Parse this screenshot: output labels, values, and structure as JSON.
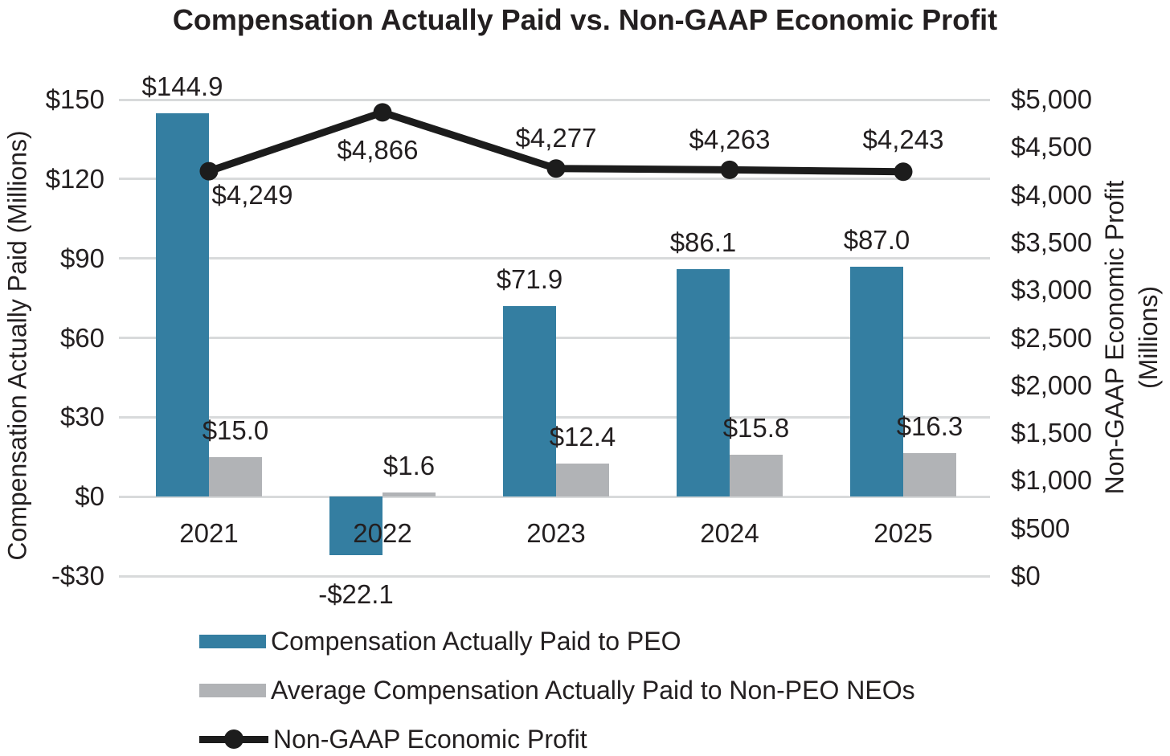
{
  "title": "Compensation Actually Paid vs. Non-GAAP Economic Profit",
  "chart_data": {
    "type": "combo-bar-line",
    "title": "Compensation Actually Paid vs. Non-GAAP Economic Profit",
    "categories": [
      "2021",
      "2022",
      "2023",
      "2024",
      "2025"
    ],
    "series": [
      {
        "name": "Compensation Actually Paid to PEO",
        "type": "bar",
        "axis": "left",
        "color": "#347EA1",
        "values": [
          144.9,
          -22.1,
          71.9,
          86.1,
          87.0
        ],
        "labels": [
          "$144.9",
          "-$22.1",
          "$71.9",
          "$86.1",
          "$87.0"
        ]
      },
      {
        "name": "Average Compensation Actually Paid to Non-PEO NEOs",
        "type": "bar",
        "axis": "left",
        "color": "#B1B3B6",
        "values": [
          15.0,
          1.6,
          12.4,
          15.8,
          16.3
        ],
        "labels": [
          "$15.0",
          "$1.6",
          "$12.4",
          "$15.8",
          "$16.3"
        ]
      },
      {
        "name": "Non-GAAP Economic Profit",
        "type": "line",
        "axis": "right",
        "color": "#1C1C1C",
        "values": [
          4249,
          4866,
          4277,
          4263,
          4243
        ],
        "labels": [
          "$4,249",
          "$4,866",
          "$4,277",
          "$4,263",
          "$4,243"
        ],
        "label_offsets": [
          [
            54,
            30
          ],
          [
            -6,
            47
          ],
          [
            0,
            -38
          ],
          [
            0,
            -37
          ],
          [
            0,
            -40
          ]
        ]
      }
    ],
    "left_axis": {
      "title": "Compensation Actually Paid (Millions)",
      "range": [
        -30,
        150
      ],
      "tick_values": [
        150,
        120,
        90,
        60,
        30,
        0,
        -30
      ],
      "tick_labels": [
        "$150",
        "$120",
        "$90",
        "$60",
        "$30",
        "$0",
        "-$30"
      ]
    },
    "right_axis": {
      "title_line1": "Non-GAAP Economic Profit",
      "title_line2": "(Millions)",
      "range": [
        0,
        5000
      ],
      "tick_values": [
        5000,
        4500,
        4000,
        3500,
        3000,
        2500,
        2000,
        1500,
        1000,
        500,
        0
      ],
      "tick_labels": [
        "$5,000",
        "$4,500",
        "$4,000",
        "$3,500",
        "$3,000",
        "$2,500",
        "$2,000",
        "$1,500",
        "$1,000",
        "$500",
        "$0"
      ]
    },
    "grid": "horizontal",
    "grid_color": "#D8DADB",
    "legend_position": "bottom-left",
    "legend": [
      "Compensation Actually Paid to PEO",
      "Average Compensation Actually Paid to Non-PEO NEOs",
      "Non-GAAP Economic Profit"
    ]
  }
}
